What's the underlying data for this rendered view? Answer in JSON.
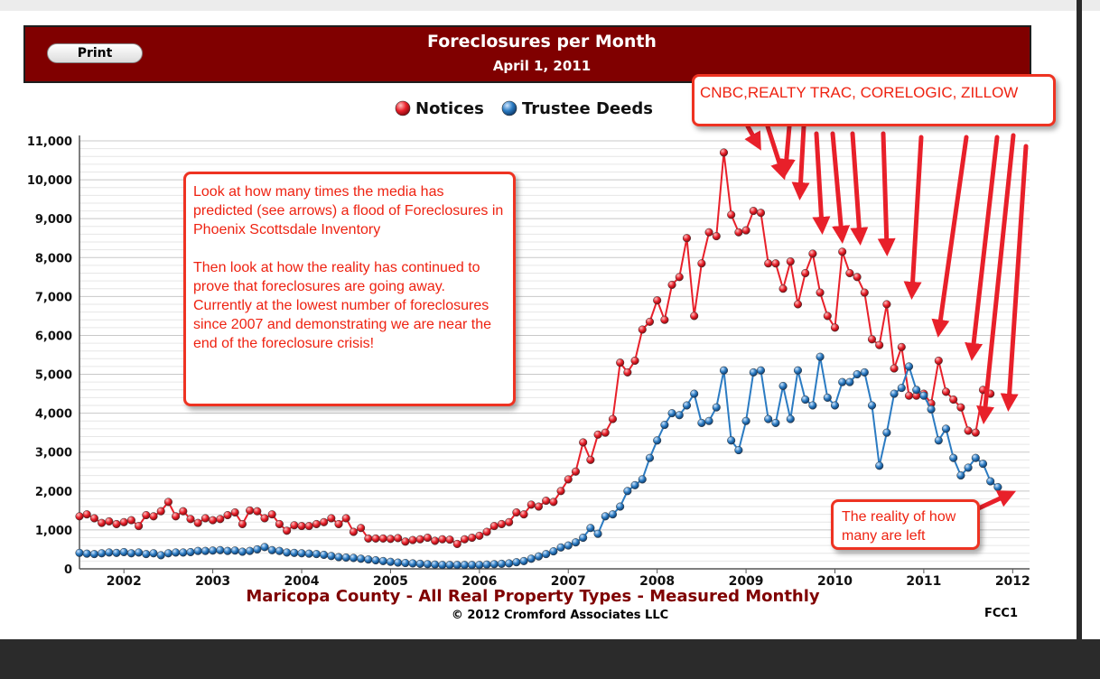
{
  "header": {
    "print_label": "Print",
    "title": "Foreclosures per Month",
    "date": "April 1, 2011",
    "background_color": "#800000"
  },
  "legend": [
    {
      "label": "Notices",
      "color": "#e8202a"
    },
    {
      "label": "Trustee Deeds",
      "color": "#2b7bc2"
    }
  ],
  "callouts": {
    "sources": "CNBC,REALTY TRAC, CORELOGIC, ZILLOW",
    "media_paragraph_1": "Look at how many times the media has predicted (see arrows) a flood of Foreclosures in Phoenix Scottsdale Inventory",
    "media_paragraph_2": "Then look at how the reality has continued to prove that foreclosures are going away. Currently at the lowest number of foreclosures since 2007 and demonstrating we are near the end of the foreclosure crisis!",
    "reality": "The reality of how many are left",
    "color": "#ee2211"
  },
  "footer": {
    "subtitle": "Maricopa County - All Real Property Types - Measured Monthly",
    "copyright": "© 2012 Cromford Associates LLC",
    "code": "FCC1"
  },
  "chart_data": {
    "type": "line",
    "x_labels": [
      "2002",
      "2003",
      "2004",
      "2005",
      "2006",
      "2007",
      "2008",
      "2009",
      "2010",
      "2011",
      "2012"
    ],
    "x_range": [
      2001.5,
      2012.19
    ],
    "ylim": [
      0,
      11000
    ],
    "y_ticks": [
      "0",
      "1,000",
      "2,000",
      "3,000",
      "4,000",
      "5,000",
      "6,000",
      "7,000",
      "8,000",
      "9,000",
      "10,000",
      "11,000"
    ],
    "grid": true,
    "legend_position": "top-center",
    "series": [
      {
        "name": "Notices",
        "color": "#e8202a",
        "values": [
          1350,
          1400,
          1300,
          1180,
          1220,
          1150,
          1200,
          1250,
          1100,
          1380,
          1350,
          1480,
          1720,
          1350,
          1480,
          1280,
          1180,
          1300,
          1250,
          1280,
          1380,
          1450,
          1150,
          1500,
          1480,
          1300,
          1400,
          1150,
          980,
          1120,
          1100,
          1100,
          1150,
          1200,
          1300,
          1150,
          1300,
          950,
          1050,
          780,
          780,
          780,
          770,
          790,
          700,
          740,
          760,
          800,
          720,
          760,
          750,
          640,
          760,
          800,
          850,
          950,
          1100,
          1150,
          1200,
          1450,
          1400,
          1650,
          1600,
          1750,
          1720,
          2000,
          2300,
          2500,
          3250,
          2800,
          3450,
          3500,
          3850,
          5300,
          5050,
          5350,
          6150,
          6350,
          6900,
          6400,
          7300,
          7500,
          8500,
          6500,
          7850,
          8650,
          8550,
          10700,
          9100,
          8650,
          8700,
          9200,
          9150,
          7850,
          7850,
          7200,
          7900,
          6800,
          7600,
          8100,
          7100,
          6500,
          6200,
          8150,
          7600,
          7500,
          7100,
          5900,
          5750,
          6800,
          5150,
          5700,
          4450,
          4450,
          4500,
          4250,
          5350,
          4550,
          4350,
          4150,
          3550,
          3500,
          4600,
          4500
        ]
      },
      {
        "name": "Trustee Deeds",
        "color": "#2b7bc2",
        "values": [
          410,
          390,
          380,
          400,
          420,
          410,
          430,
          400,
          420,
          380,
          400,
          350,
          400,
          420,
          420,
          430,
          460,
          460,
          470,
          480,
          460,
          470,
          440,
          460,
          500,
          560,
          480,
          460,
          420,
          410,
          400,
          390,
          380,
          360,
          330,
          300,
          290,
          280,
          260,
          240,
          220,
          200,
          180,
          160,
          150,
          140,
          130,
          120,
          110,
          100,
          100,
          100,
          100,
          100,
          100,
          110,
          120,
          130,
          140,
          170,
          200,
          260,
          320,
          380,
          450,
          550,
          600,
          680,
          800,
          1050,
          900,
          1350,
          1400,
          1600,
          2000,
          2150,
          2300,
          2850,
          3300,
          3700,
          4000,
          3950,
          4200,
          4500,
          3750,
          3800,
          4150,
          5100,
          3300,
          3050,
          3800,
          5050,
          5100,
          3850,
          3750,
          4700,
          3850,
          5100,
          4350,
          4200,
          5450,
          4400,
          4200,
          4800,
          4800,
          5000,
          5050,
          4200,
          2650,
          3500,
          4500,
          4650,
          5200,
          4600,
          4450,
          4100,
          3300,
          3600,
          2850,
          2400,
          2600,
          2850,
          2700,
          2250,
          2100
        ]
      }
    ]
  }
}
